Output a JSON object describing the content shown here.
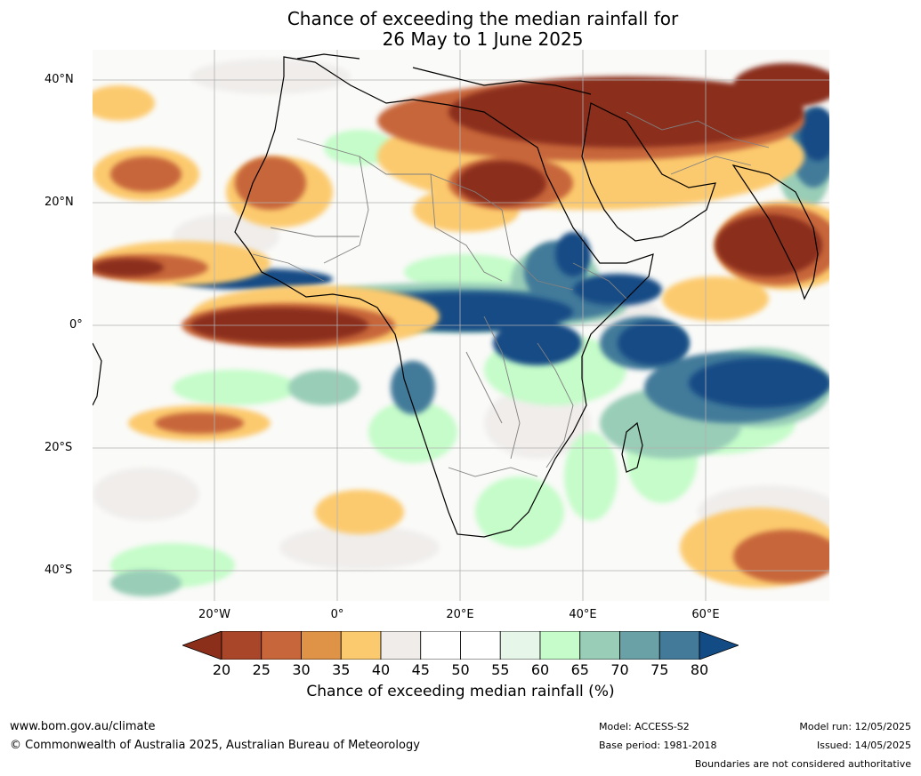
{
  "title": {
    "line1": "Chance of exceeding the median rainfall for",
    "line2": "26 May to 1 June 2025"
  },
  "axes": {
    "lat_labels": [
      "40°N",
      "20°N",
      "0°",
      "20°S",
      "40°S"
    ],
    "lon_labels": [
      "20°W",
      "0°",
      "20°E",
      "40°E",
      "60°E"
    ],
    "lat_range": [
      -45,
      45
    ],
    "lon_range": [
      -40,
      80
    ],
    "gridlines": true
  },
  "colorbar": {
    "ticks": [
      "20",
      "25",
      "30",
      "35",
      "40",
      "45",
      "50",
      "55",
      "60",
      "65",
      "70",
      "75",
      "80"
    ],
    "colors": [
      "#8b2e1a",
      "#a9462a",
      "#c7663a",
      "#df9347",
      "#fcca6e",
      "#efecea",
      "#ffffff",
      "#ffffff",
      "#e6f6e8",
      "#c5fcc9",
      "#99cdb7",
      "#6aa1a6",
      "#437a9a",
      "#134b85"
    ],
    "label": "Chance of exceeding median rainfall (%)",
    "extend": "both"
  },
  "footer": {
    "website": "www.bom.gov.au/climate",
    "copyright": "© Commonwealth of Australia 2025, Australian Bureau of Meteorology",
    "model": "Model: ACCESS-S2",
    "base_period": "Base period: 1981-2018",
    "model_run": "Model run: 12/05/2025",
    "issued": "Issued: 14/05/2025",
    "disclaimer": "Boundaries are not considered authoritative"
  }
}
